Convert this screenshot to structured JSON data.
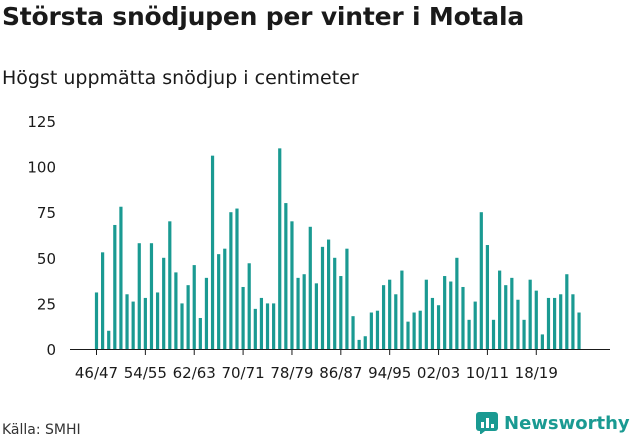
{
  "title": "Största snödjupen per vinter i Motala",
  "subtitle": "Högst uppmätta snödjup i centimeter",
  "source": "Källa: SMHI",
  "brand": {
    "name": "Newsworthy",
    "icon": "newsworthy-logo-icon",
    "color": "#1a9a92"
  },
  "colors": {
    "bar": "#1a9a92",
    "axis": "#1a1a1a",
    "grid": "#d9d9d9"
  },
  "chart_data": {
    "type": "bar",
    "title": "Största snödjupen per vinter i Motala",
    "subtitle": "Högst uppmätta snödjup i centimeter",
    "xlabel": "",
    "ylabel": "",
    "ylim": [
      0,
      125
    ],
    "yticks": [
      0,
      25,
      50,
      75,
      100,
      125
    ],
    "grid": false,
    "tick_labels": [
      "46/47",
      "54/55",
      "62/63",
      "70/71",
      "78/79",
      "86/87",
      "94/95",
      "02/03",
      "10/11",
      "18/19"
    ],
    "tick_every": 8,
    "values": [
      31,
      53,
      10,
      68,
      78,
      30,
      26,
      58,
      28,
      58,
      31,
      50,
      70,
      42,
      25,
      35,
      46,
      17,
      39,
      106,
      52,
      55,
      75,
      77,
      34,
      47,
      22,
      28,
      25,
      25,
      110,
      80,
      70,
      39,
      41,
      67,
      36,
      56,
      60,
      50,
      40,
      55,
      18,
      5,
      7,
      20,
      21,
      35,
      38,
      30,
      43,
      15,
      20,
      21,
      38,
      28,
      24,
      40,
      37,
      50,
      34,
      16,
      26,
      75,
      57,
      16,
      43,
      35,
      39,
      27,
      16,
      38,
      32,
      8,
      28,
      28,
      30,
      41,
      30,
      20
    ]
  }
}
